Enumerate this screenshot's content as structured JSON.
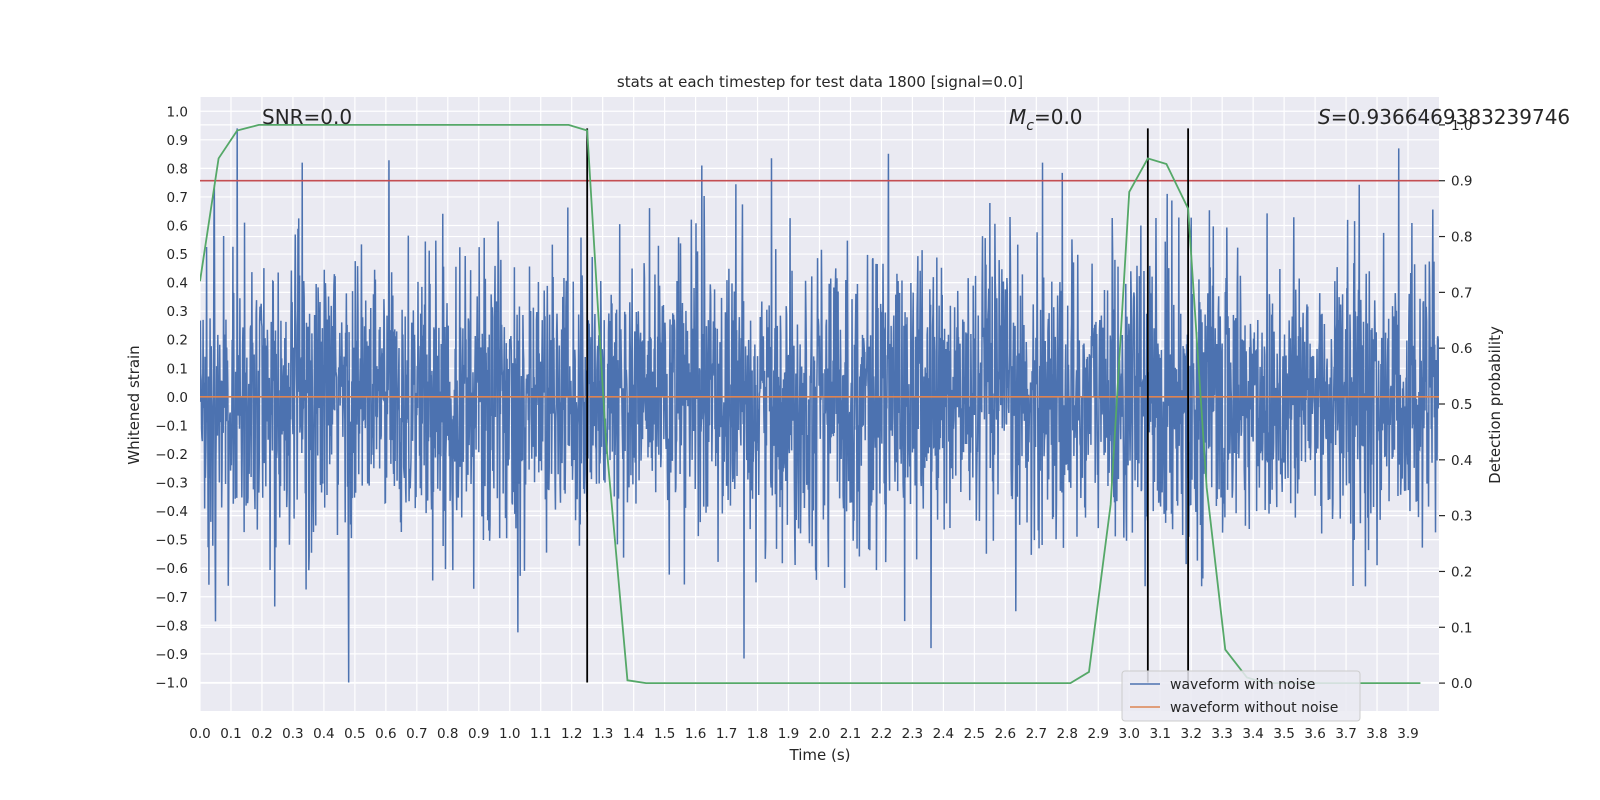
{
  "chart_data": {
    "type": "line",
    "title": "stats at each timestep for test data 1800 [signal=0.0]",
    "xlabel": "Time (s)",
    "ylabel": "Whitened strain",
    "y2label": "Detection probability",
    "xlim": [
      0.0,
      4.0
    ],
    "ylim": [
      -1.1,
      1.05
    ],
    "y2lim": [
      -0.05,
      1.05
    ],
    "x_ticks": [
      0.0,
      0.1,
      0.2,
      0.3,
      0.4,
      0.5,
      0.6,
      0.7,
      0.8,
      0.9,
      1.0,
      1.1,
      1.2,
      1.3,
      1.4,
      1.5,
      1.6,
      1.7,
      1.8,
      1.9,
      2.0,
      2.1,
      2.2,
      2.3,
      2.4,
      2.5,
      2.6,
      2.7,
      2.8,
      2.9,
      3.0,
      3.1,
      3.2,
      3.3,
      3.4,
      3.5,
      3.6,
      3.7,
      3.8,
      3.9
    ],
    "y_ticks": [
      1.0,
      0.9,
      0.8,
      0.7,
      0.6,
      0.5,
      0.4,
      0.3,
      0.2,
      0.1,
      0.0,
      -0.1,
      -0.2,
      -0.3,
      -0.4,
      -0.5,
      -0.6,
      -0.7,
      -0.8,
      -0.9,
      -1.0
    ],
    "y2_ticks": [
      1.0,
      0.9,
      0.8,
      0.7,
      0.6,
      0.5,
      0.4,
      0.3,
      0.2,
      0.1,
      0.0
    ],
    "annotations": {
      "snr": "SNR=0.0",
      "mc_symbol": "M",
      "mc_sub": "c",
      "mc_value": "=0.0",
      "s_symbol": "S",
      "s_value": "=0.9366469383239746"
    },
    "series": [
      {
        "name": "waveform with noise",
        "color": "#4c72b0",
        "axis": "left",
        "kind": "noise",
        "sample_rate": 800,
        "approx_std": 0.25,
        "notable_peaks": [
          {
            "x": 0.12,
            "y": 0.94
          },
          {
            "x": 0.33,
            "y": 0.82
          },
          {
            "x": 0.48,
            "y": -1.0
          },
          {
            "x": 1.62,
            "y": 0.81
          },
          {
            "x": 2.36,
            "y": -0.88
          },
          {
            "x": 2.72,
            "y": 0.82
          },
          {
            "x": 3.87,
            "y": 0.87
          }
        ]
      },
      {
        "name": "waveform without noise",
        "color": "#dd8452",
        "axis": "left",
        "x": [
          0.0,
          4.0
        ],
        "y": [
          0.0,
          0.0
        ]
      },
      {
        "color": "#55a868",
        "axis": "right",
        "x": [
          0.0,
          0.06,
          0.12,
          0.19,
          0.25,
          0.31,
          0.38,
          0.5,
          0.75,
          1.0,
          1.19,
          1.25,
          1.31,
          1.38,
          1.44,
          1.5,
          2.0,
          2.5,
          2.81,
          2.87,
          2.94,
          3.0,
          3.06,
          3.12,
          3.19,
          3.25,
          3.31,
          3.38,
          3.44,
          3.5,
          3.94
        ],
        "y": [
          0.72,
          0.94,
          0.99,
          1.0,
          1.0,
          1.0,
          1.0,
          1.0,
          1.0,
          1.0,
          1.0,
          0.99,
          0.44,
          0.005,
          0.0,
          0.0,
          0.0,
          0.0,
          0.0,
          0.02,
          0.32,
          0.88,
          0.94,
          0.93,
          0.85,
          0.35,
          0.06,
          0.01,
          0.0,
          0.0,
          0.0
        ]
      }
    ],
    "threshold": {
      "axis": "right",
      "value": 0.9,
      "color": "#c44e52"
    },
    "vlines": [
      {
        "x": 1.25,
        "y": [
          -1.0,
          0.94
        ]
      },
      {
        "x": 3.06,
        "y": [
          -1.0,
          0.94
        ]
      },
      {
        "x": 3.19,
        "y": [
          -1.0,
          0.94
        ]
      }
    ],
    "grid": true,
    "legend": {
      "placement": "bottom-right",
      "entries": [
        "waveform with noise",
        "waveform without noise"
      ]
    }
  }
}
